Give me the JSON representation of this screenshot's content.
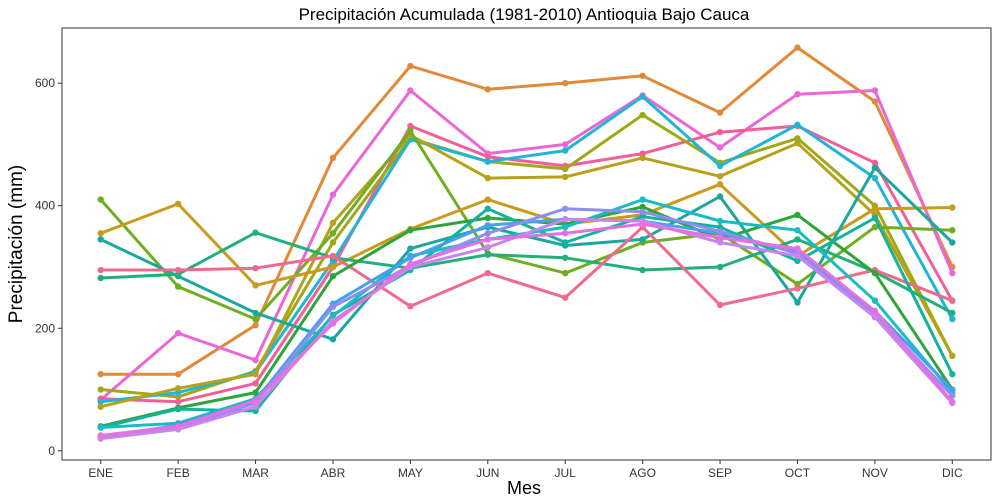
{
  "chart_data": {
    "type": "line",
    "title": "Precipitación Acumulada (1981-2010)  Antioquia Bajo Cauca",
    "xlabel": "Mes",
    "ylabel": "Precipitación  (mm)",
    "categories": [
      "ENE",
      "FEB",
      "MAR",
      "ABR",
      "MAY",
      "JUN",
      "JUL",
      "AGO",
      "SEP",
      "OCT",
      "NOV",
      "DIC"
    ],
    "ylim": [
      -15,
      690
    ],
    "yticks": [
      0,
      200,
      400,
      600
    ],
    "grid": false,
    "legend": "none",
    "series": [
      {
        "color": "#E08A38",
        "values": [
          125,
          125,
          205,
          478,
          628,
          590,
          600,
          612,
          552,
          658,
          570,
          300
        ]
      },
      {
        "color": "#EB66D6",
        "values": [
          83,
          192,
          148,
          418,
          588,
          485,
          500,
          580,
          495,
          582,
          588,
          290
        ]
      },
      {
        "color": "#F25E97",
        "values": [
          85,
          80,
          110,
          300,
          530,
          480,
          465,
          485,
          520,
          530,
          470,
          245
        ]
      },
      {
        "color": "#9FA918",
        "values": [
          100,
          88,
          130,
          340,
          510,
          472,
          460,
          548,
          470,
          510,
          400,
          155
        ]
      },
      {
        "color": "#21B4D6",
        "values": [
          80,
          95,
          128,
          310,
          508,
          472,
          490,
          578,
          465,
          532,
          445,
          215
        ]
      },
      {
        "color": "#B5A21A",
        "values": [
          72,
          102,
          125,
          372,
          515,
          445,
          447,
          478,
          448,
          502,
          385,
          155
        ]
      },
      {
        "color": "#6EAE20",
        "values": [
          410,
          268,
          215,
          355,
          522,
          322,
          290,
          340,
          355,
          272,
          365,
          360
        ]
      },
      {
        "color": "#C99A1C",
        "values": [
          355,
          403,
          270,
          300,
          362,
          410,
          370,
          385,
          435,
          318,
          395,
          397
        ]
      },
      {
        "color": "#1CA6A0",
        "values": [
          345,
          285,
          225,
          182,
          330,
          365,
          335,
          345,
          415,
          242,
          462,
          340
        ]
      },
      {
        "color": "#22B07A",
        "values": [
          282,
          288,
          356,
          315,
          298,
          320,
          315,
          295,
          300,
          345,
          292,
          225
        ]
      },
      {
        "color": "#EE6B8D",
        "values": [
          295,
          295,
          298,
          318,
          236,
          290,
          250,
          365,
          238,
          265,
          295,
          245
        ]
      },
      {
        "color": "#2CA63A",
        "values": [
          40,
          70,
          95,
          285,
          360,
          380,
          370,
          398,
          345,
          385,
          290,
          100
        ]
      },
      {
        "color": "#13B39B",
        "values": [
          38,
          68,
          65,
          222,
          295,
          395,
          340,
          382,
          365,
          310,
          380,
          125
        ]
      },
      {
        "color": "#19BCC4",
        "values": [
          38,
          45,
          85,
          220,
          318,
          345,
          365,
          410,
          375,
          360,
          245,
          95
        ]
      },
      {
        "color": "#46A0EE",
        "values": [
          22,
          42,
          82,
          240,
          315,
          368,
          378,
          375,
          355,
          325,
          228,
          100
        ]
      },
      {
        "color": "#8E8EF2",
        "values": [
          22,
          38,
          78,
          235,
          302,
          355,
          395,
          390,
          358,
          322,
          222,
          90
        ]
      },
      {
        "color": "#C884F0",
        "values": [
          20,
          35,
          72,
          212,
          300,
          332,
          378,
          375,
          340,
          318,
          218,
          78
        ]
      },
      {
        "color": "#E86FE0",
        "values": [
          25,
          40,
          82,
          208,
          305,
          345,
          355,
          370,
          348,
          330,
          228,
          80
        ]
      }
    ]
  }
}
